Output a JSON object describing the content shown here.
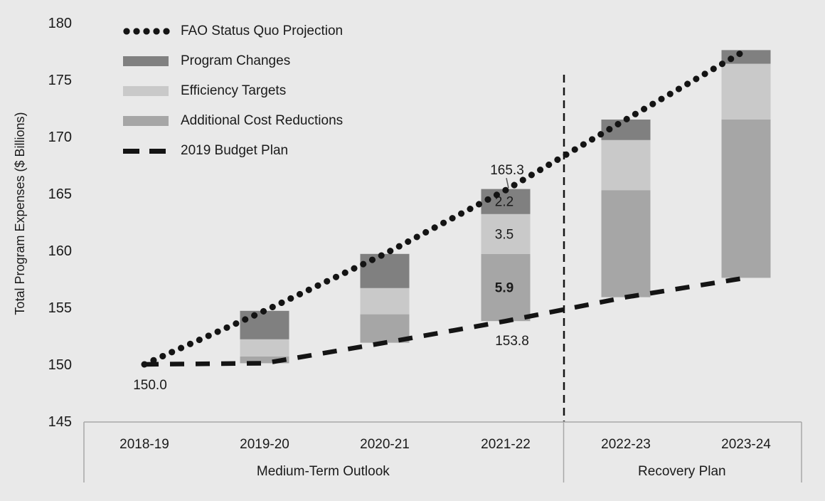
{
  "colors": {
    "background": "#e9e9e9",
    "program_changes": "#808080",
    "efficiency_targets": "#c9c9c9",
    "additional_cost_reductions": "#a6a6a6",
    "line_black": "#141414",
    "axis_gray": "#a8a8a8",
    "text": "#1a1a1a"
  },
  "legend": [
    {
      "label": "FAO Status Quo Projection",
      "marker": "dotted-line"
    },
    {
      "label": "Program Changes",
      "marker": "solid-dark-gray"
    },
    {
      "label": "Efficiency Targets",
      "marker": "solid-light-gray"
    },
    {
      "label": "Additional Cost Reductions",
      "marker": "solid-medium-gray"
    },
    {
      "label": "2019 Budget Plan",
      "marker": "dashed-line"
    }
  ],
  "y_axis": {
    "title": "Total Program Expenses ($ Billions)",
    "min": 145,
    "max": 180,
    "tick_step": 5,
    "ticks": [
      180,
      175,
      170,
      165,
      160,
      155,
      150,
      145
    ]
  },
  "x_axis": {
    "categories": [
      "2018-19",
      "2019-20",
      "2020-21",
      "2021-22",
      "2022-23",
      "2023-24"
    ],
    "groups": [
      {
        "label": "Medium-Term Outlook",
        "categories": 4
      },
      {
        "label": "Recovery Plan",
        "categories": 2
      }
    ]
  },
  "chart_data": {
    "type": "bar",
    "variant": "stacked-bars-between-two-lines",
    "title": "",
    "xlabel": "",
    "ylabel": "Total Program Expenses ($ Billions)",
    "ylim": [
      145,
      180
    ],
    "gridlines": false,
    "legend_position": "top-left",
    "categories": [
      "2018-19",
      "2019-20",
      "2020-21",
      "2021-22",
      "2022-23",
      "2023-24"
    ],
    "bar_base_series": "2019 Budget Plan",
    "stack_order_bottom_to_top": [
      "Additional Cost Reductions",
      "Efficiency Targets",
      "Program Changes"
    ],
    "series": [
      {
        "name": "FAO Status Quo Projection",
        "type": "line",
        "style": "dotted",
        "color": "#141414",
        "values": [
          150.0,
          154.7,
          159.7,
          165.3,
          171.5,
          177.6
        ]
      },
      {
        "name": "2019 Budget Plan",
        "type": "line",
        "style": "dashed",
        "color": "#141414",
        "values": [
          150.0,
          150.1,
          151.9,
          153.8,
          155.9,
          157.6
        ]
      },
      {
        "name": "Additional Cost Reductions",
        "type": "bar",
        "color": "#a6a6a6",
        "values": [
          null,
          0.6,
          2.5,
          5.9,
          9.4,
          13.9
        ]
      },
      {
        "name": "Efficiency Targets",
        "type": "bar",
        "color": "#c9c9c9",
        "values": [
          null,
          1.5,
          2.3,
          3.5,
          4.4,
          4.9
        ]
      },
      {
        "name": "Program Changes",
        "type": "bar",
        "color": "#808080",
        "values": [
          null,
          2.5,
          3.0,
          2.2,
          1.8,
          1.2
        ]
      }
    ],
    "annotations": {
      "start_value_label": "150.0",
      "fao_top_label": "165.3",
      "budget_bottom_label": "153.8",
      "labeled_category": "2021-22",
      "segment_labels": [
        {
          "series": "Program Changes",
          "text": "2.2",
          "bold": false
        },
        {
          "series": "Efficiency Targets",
          "text": "3.5",
          "bold": false
        },
        {
          "series": "Additional Cost Reductions",
          "text": "5.9",
          "bold": true
        }
      ]
    },
    "region_divider": {
      "between": [
        "2021-22",
        "2022-23"
      ],
      "style": "vertical-dashed-line"
    }
  }
}
